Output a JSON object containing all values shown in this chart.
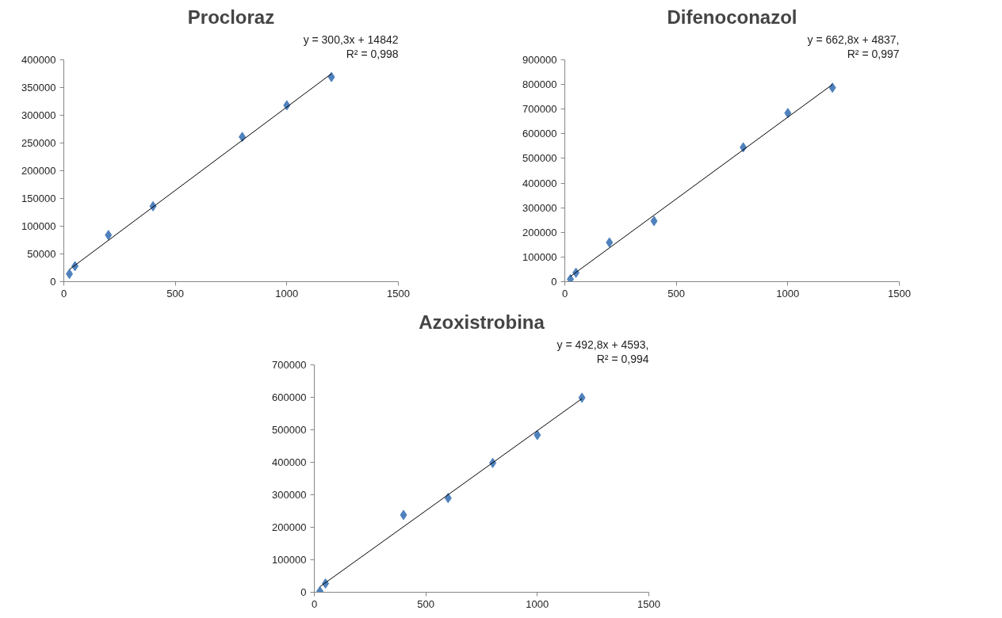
{
  "chart_data": [
    {
      "type": "scatter",
      "title": "Procloraz",
      "marker": "diamond",
      "grid": false,
      "annotations": [
        "y = 300,3x + 14842",
        "R² = 0,998"
      ],
      "xlim": [
        0,
        1500
      ],
      "xticks": [
        0,
        500,
        1000,
        1500
      ],
      "ylim": [
        0,
        400000
      ],
      "yticks": [
        0,
        50000,
        100000,
        150000,
        200000,
        250000,
        300000,
        350000,
        400000
      ],
      "series": [
        {
          "color": "#4f81bd",
          "x": [
            25,
            50,
            200,
            400,
            800,
            1000,
            1200
          ],
          "values": [
            14000,
            28000,
            84000,
            136000,
            261000,
            318000,
            369000
          ]
        },
        {
          "type": "line",
          "marker": "none",
          "color": "#000000",
          "x": [
            25,
            1200
          ],
          "values": [
            22000,
            375000
          ]
        }
      ]
    },
    {
      "type": "scatter",
      "title": "Difenoconazol",
      "marker": "diamond",
      "grid": false,
      "annotations": [
        "y = 662,8x + 4837,",
        "R² = 0,997"
      ],
      "xlim": [
        0,
        1500
      ],
      "xticks": [
        0,
        500,
        1000,
        1500
      ],
      "ylim": [
        0,
        900000
      ],
      "yticks": [
        0,
        100000,
        200000,
        300000,
        400000,
        500000,
        600000,
        700000,
        800000,
        900000
      ],
      "series": [
        {
          "color": "#4f81bd",
          "x": [
            25,
            50,
            200,
            400,
            800,
            1000,
            1200
          ],
          "values": [
            10000,
            36000,
            159000,
            246000,
            545000,
            684000,
            787000
          ]
        },
        {
          "type": "line",
          "marker": "none",
          "color": "#000000",
          "x": [
            25,
            1200
          ],
          "values": [
            21000,
            800000
          ]
        }
      ]
    },
    {
      "type": "scatter",
      "title": "Azoxistrobina",
      "marker": "diamond",
      "grid": false,
      "annotations": [
        "y = 492,8x + 4593,",
        "R² = 0,994"
      ],
      "xlim": [
        0,
        1500
      ],
      "xticks": [
        0,
        500,
        1000,
        1500
      ],
      "ylim": [
        0,
        700000
      ],
      "yticks": [
        0,
        100000,
        200000,
        300000,
        400000,
        500000,
        600000,
        700000
      ],
      "series": [
        {
          "color": "#4f81bd",
          "x": [
            25,
            50,
            400,
            600,
            800,
            1000,
            1200
          ],
          "values": [
            3000,
            27000,
            238000,
            290000,
            398000,
            484000,
            599000
          ]
        },
        {
          "type": "line",
          "marker": "none",
          "color": "#000000",
          "x": [
            25,
            1200
          ],
          "values": [
            17000,
            596000
          ]
        }
      ]
    }
  ]
}
